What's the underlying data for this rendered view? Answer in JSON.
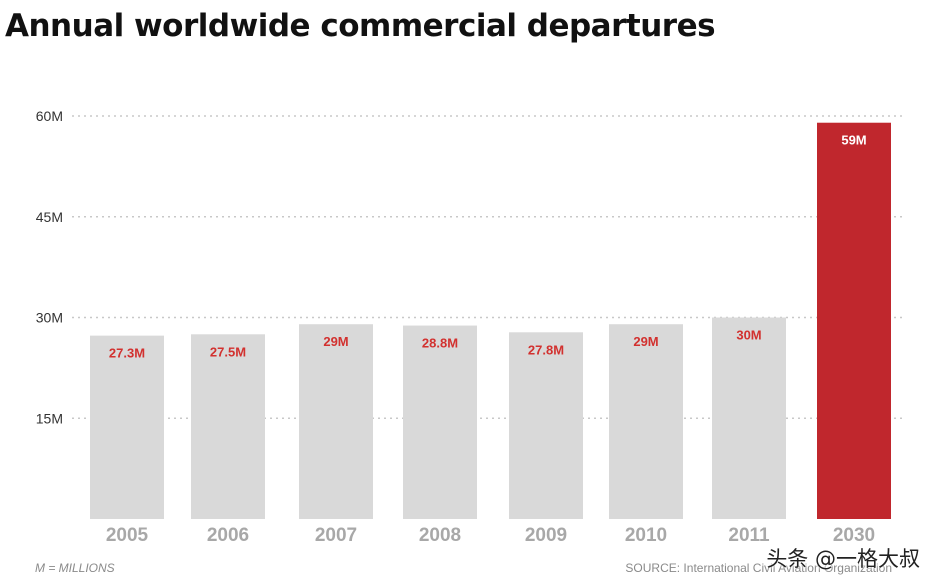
{
  "chart_data": {
    "type": "bar",
    "title": "Annual worldwide commercial departures",
    "categories": [
      "2005",
      "2006",
      "2007",
      "2008",
      "2009",
      "2010",
      "2011",
      "2030"
    ],
    "values": [
      27.3,
      27.5,
      29,
      28.8,
      27.8,
      29,
      30,
      59
    ],
    "data_labels": [
      "27.3M",
      "27.5M",
      "29M",
      "28.8M",
      "27.8M",
      "29M",
      "30M",
      "59M"
    ],
    "highlight_index": 7,
    "yticks": [
      15,
      30,
      45,
      60
    ],
    "ytick_labels": [
      "15M",
      "30M",
      "45M",
      "60M"
    ],
    "ylim": [
      0,
      60
    ],
    "grid": true,
    "xlabel": "",
    "ylabel": "",
    "footnote": "M = MILLIONS",
    "source": "SOURCE: International Civil Aviation Organization"
  },
  "watermark": "头条 @一格大叔",
  "colors": {
    "bar": "#d9d9d9",
    "highlight_bar": "#c0272d",
    "data_label": "#d2312f",
    "highlight_label": "#ffffff",
    "grid": "#c8c8c8",
    "axis_text": "#333333",
    "category_text": "#a8a8a8"
  }
}
